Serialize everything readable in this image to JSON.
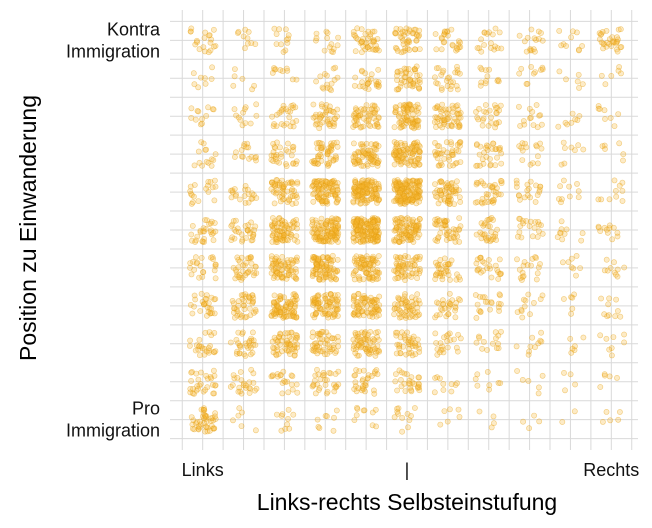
{
  "chart_data": {
    "type": "scatter",
    "title": "",
    "xlabel": "Links-rechts Selbsteinstufung",
    "ylabel": "Position zu Einwanderung",
    "x_categories": [
      0,
      1,
      2,
      3,
      4,
      5,
      6,
      7,
      8,
      9,
      10
    ],
    "y_categories": [
      0,
      1,
      2,
      3,
      4,
      5,
      6,
      7,
      8,
      9,
      10
    ],
    "xlim": [
      -0.8,
      10.8
    ],
    "ylim": [
      -0.8,
      10.8
    ],
    "x_tick_labels": [
      {
        "value": 0,
        "text": "Links"
      },
      {
        "value": 5,
        "text": "|"
      },
      {
        "value": 10,
        "text": "Rechts"
      }
    ],
    "y_tick_labels": [
      {
        "value": 0,
        "lines": [
          "Pro",
          "Immigration"
        ]
      },
      {
        "value": 10,
        "lines": [
          "Kontra",
          "Immigration"
        ]
      }
    ],
    "jitter": 0.32,
    "grid": true,
    "point_color": "#f7b731",
    "cell_counts": [
      [
        45,
        6,
        10,
        8,
        10,
        12,
        6,
        4,
        4,
        2,
        5
      ],
      [
        30,
        24,
        20,
        30,
        30,
        28,
        10,
        8,
        6,
        4,
        5
      ],
      [
        25,
        30,
        55,
        50,
        65,
        40,
        22,
        14,
        10,
        6,
        8
      ],
      [
        28,
        40,
        85,
        80,
        75,
        55,
        28,
        20,
        12,
        6,
        10
      ],
      [
        22,
        35,
        70,
        90,
        80,
        60,
        35,
        25,
        18,
        8,
        10
      ],
      [
        28,
        30,
        75,
        110,
        160,
        95,
        45,
        30,
        20,
        10,
        12
      ],
      [
        18,
        20,
        55,
        95,
        125,
        150,
        55,
        35,
        20,
        10,
        10
      ],
      [
        14,
        15,
        30,
        50,
        70,
        90,
        40,
        30,
        15,
        8,
        6
      ],
      [
        12,
        12,
        25,
        40,
        55,
        75,
        55,
        25,
        14,
        8,
        8
      ],
      [
        8,
        6,
        10,
        15,
        25,
        45,
        25,
        12,
        10,
        6,
        6
      ],
      [
        20,
        10,
        12,
        14,
        40,
        45,
        25,
        18,
        16,
        10,
        30
      ]
    ]
  }
}
